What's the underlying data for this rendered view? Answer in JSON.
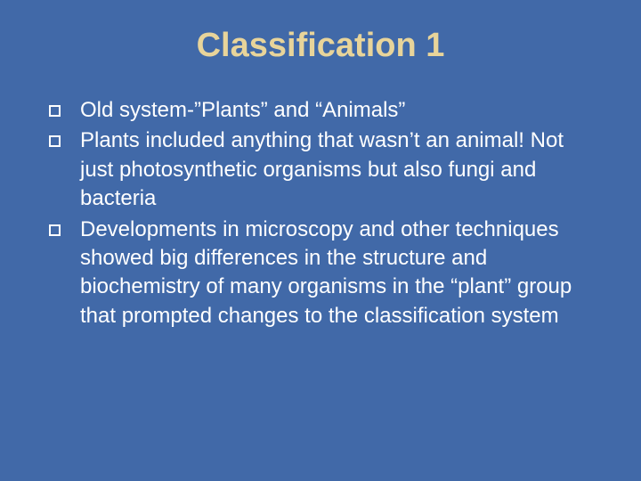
{
  "slide": {
    "title": "Classification 1",
    "background_color": "#4169a8",
    "title_color": "#e8d49a",
    "text_color": "#ffffff",
    "title_fontsize": 38,
    "body_fontsize": 24,
    "bullet_marker": {
      "shape": "hollow-square",
      "size": 13,
      "border_color": "#ffffff",
      "border_width": 2
    },
    "bullets": [
      {
        "text": "Old system-”Plants” and “Animals”"
      },
      {
        "text": "Plants included anything that wasn’t an animal! Not just photosynthetic organisms but also fungi and bacteria"
      },
      {
        "text": "Developments in microscopy and other techniques showed big differences in the structure and biochemistry of many organisms in the “plant” group that prompted changes to the classification system"
      }
    ]
  }
}
